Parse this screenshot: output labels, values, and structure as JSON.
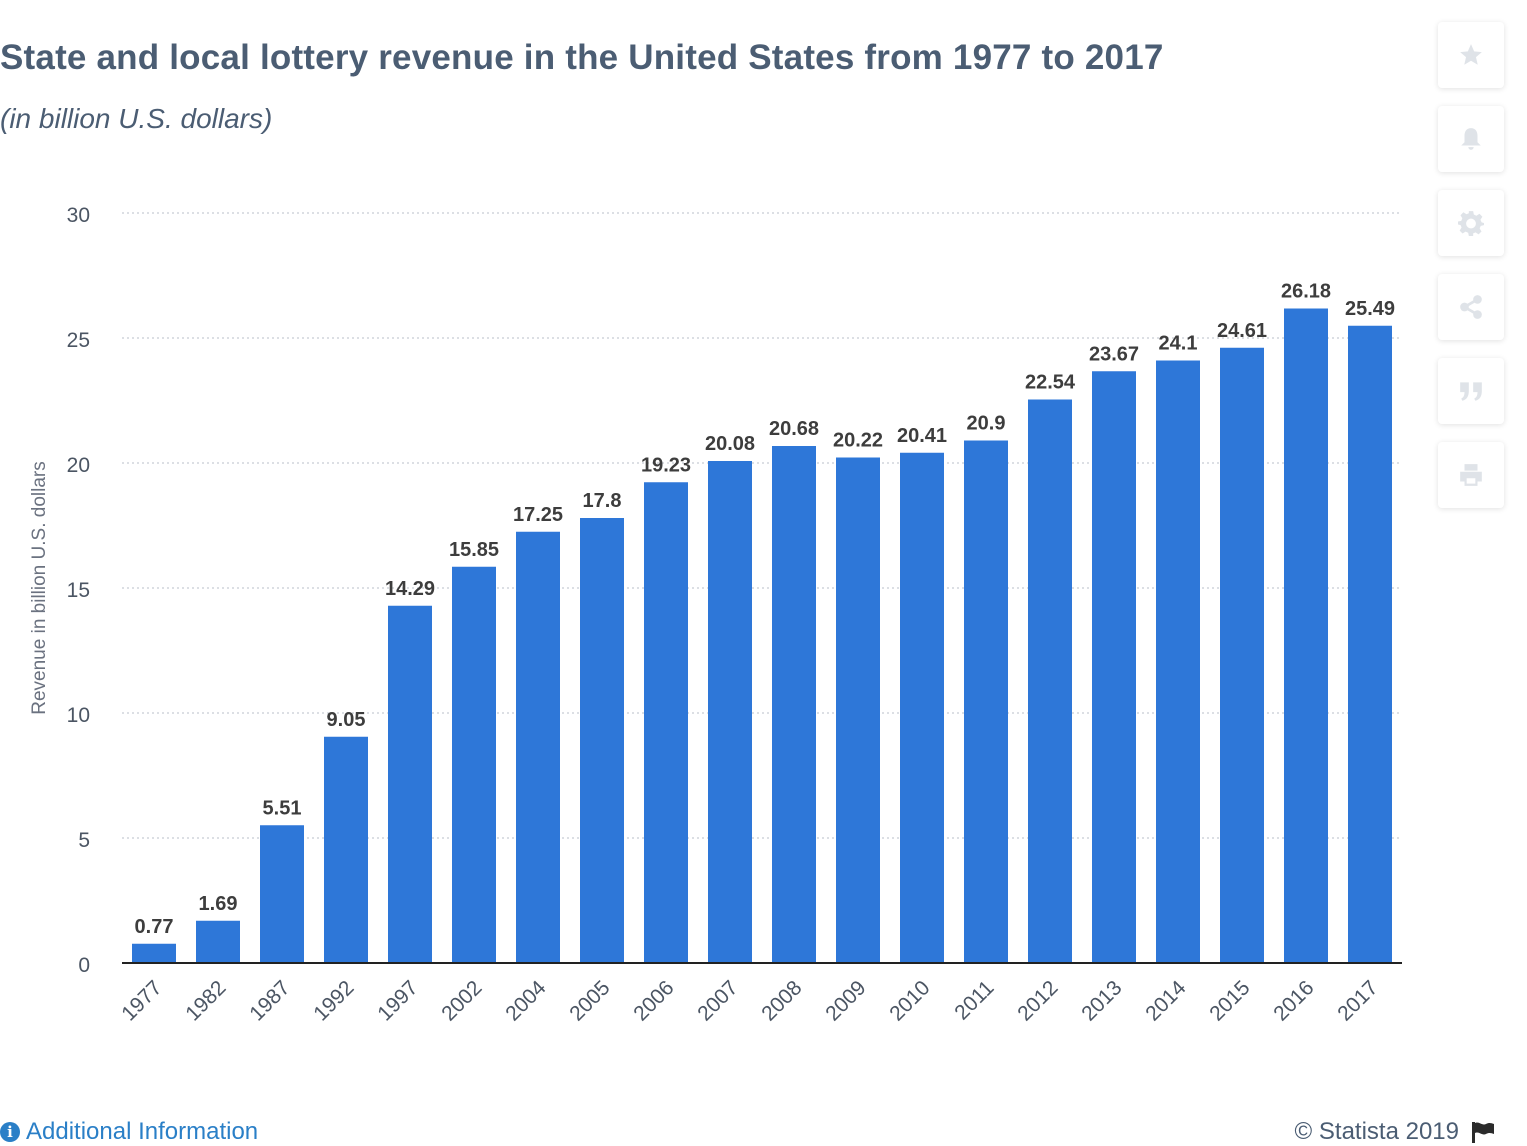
{
  "header": {
    "title": "State and local lottery revenue in the United States from 1977 to 2017",
    "subtitle": "(in billion U.S. dollars)"
  },
  "sidebar": {
    "buttons": [
      {
        "icon": "star-icon"
      },
      {
        "icon": "bell-icon"
      },
      {
        "icon": "gear-icon"
      },
      {
        "icon": "share-icon"
      },
      {
        "icon": "quote-icon"
      },
      {
        "icon": "print-icon"
      }
    ],
    "icon_color": "#dfe3e8"
  },
  "footer": {
    "additional_info": "Additional Information",
    "copyright": "© Statista 2019"
  },
  "chart_data": {
    "type": "bar",
    "categories": [
      "1977",
      "1982",
      "1987",
      "1992",
      "1997",
      "2002",
      "2004",
      "2005",
      "2006",
      "2007",
      "2008",
      "2009",
      "2010",
      "2011",
      "2012",
      "2013",
      "2014",
      "2015",
      "2016",
      "2017"
    ],
    "values": [
      0.77,
      1.69,
      5.51,
      9.05,
      14.29,
      15.85,
      17.25,
      17.8,
      19.23,
      20.08,
      20.68,
      20.22,
      20.41,
      20.9,
      22.54,
      23.67,
      24.1,
      24.61,
      26.18,
      25.49
    ],
    "value_labels": [
      "0.77",
      "1.69",
      "5.51",
      "9.05",
      "14.29",
      "15.85",
      "17.25",
      "17.8",
      "19.23",
      "20.08",
      "20.68",
      "20.22",
      "20.41",
      "20.9",
      "22.54",
      "23.67",
      "24.1",
      "24.61",
      "26.18",
      "25.49"
    ],
    "ylabel": "Revenue in billion U.S. dollars",
    "xlabel": "",
    "ylim": [
      0,
      30
    ],
    "yticks": [
      0,
      5,
      10,
      15,
      20,
      25,
      30
    ],
    "grid": true,
    "bar_color": "#2e77d8"
  }
}
